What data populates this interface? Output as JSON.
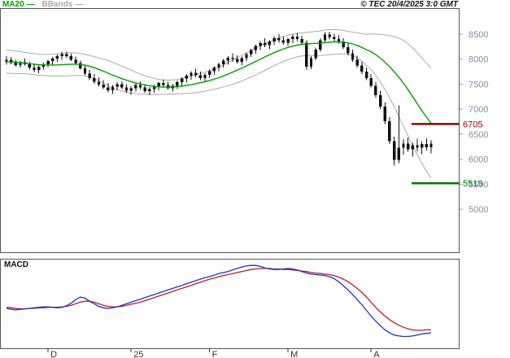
{
  "legend": {
    "ma20_label": "MA20",
    "bbands_label": "BBands",
    "swatch": "—"
  },
  "copyright": "© TEC 20/4/2025 3:0 GMT",
  "macd_label": "MACD",
  "colors": {
    "background": "#ffffff",
    "candle": "#111111",
    "panel_border": "#555555",
    "axis_label": "#7f8fa4",
    "x_label": "#333333",
    "ma20": "#00a000",
    "bollinger": "#aaaaaa",
    "macd_line": "#2233bb",
    "signal_line": "#b02030",
    "resistance": "#990000",
    "support": "#007c00"
  },
  "chart_data": {
    "type": "candlestick",
    "title": "",
    "y_axis": {
      "ticks": [
        8500,
        8000,
        7500,
        7000,
        6500,
        6000,
        5500,
        5000
      ],
      "range": [
        4140,
        9020
      ]
    },
    "x_axis": {
      "labels": [
        {
          "label": "D",
          "index": 9
        },
        {
          "label": "25",
          "index": 27
        },
        {
          "label": "F",
          "index": 44
        },
        {
          "label": "M",
          "index": 61
        },
        {
          "label": "A",
          "index": 79
        }
      ]
    },
    "candles": [
      [
        7950,
        8060,
        7890,
        7990
      ],
      [
        7990,
        8040,
        7900,
        7930
      ],
      [
        7930,
        7990,
        7850,
        7880
      ],
      [
        7880,
        7960,
        7830,
        7940
      ],
      [
        7940,
        8010,
        7870,
        7900
      ],
      [
        7900,
        7950,
        7790,
        7830
      ],
      [
        7830,
        7900,
        7740,
        7780
      ],
      [
        7780,
        7870,
        7720,
        7850
      ],
      [
        7850,
        7930,
        7790,
        7900
      ],
      [
        7900,
        7990,
        7840,
        7960
      ],
      [
        7960,
        8040,
        7890,
        8010
      ],
      [
        8010,
        8090,
        7950,
        8060
      ],
      [
        8060,
        8140,
        7990,
        8100
      ],
      [
        8100,
        8150,
        8020,
        8060
      ],
      [
        8060,
        8110,
        7960,
        7990
      ],
      [
        7990,
        8050,
        7890,
        7920
      ],
      [
        7920,
        7970,
        7790,
        7820
      ],
      [
        7820,
        7870,
        7680,
        7710
      ],
      [
        7710,
        7780,
        7580,
        7620
      ],
      [
        7620,
        7700,
        7510,
        7550
      ],
      [
        7550,
        7640,
        7450,
        7490
      ],
      [
        7490,
        7580,
        7400,
        7430
      ],
      [
        7430,
        7520,
        7340,
        7380
      ],
      [
        7380,
        7480,
        7300,
        7450
      ],
      [
        7450,
        7540,
        7380,
        7500
      ],
      [
        7500,
        7560,
        7400,
        7430
      ],
      [
        7430,
        7500,
        7330,
        7370
      ],
      [
        7370,
        7460,
        7290,
        7420
      ],
      [
        7420,
        7520,
        7350,
        7480
      ],
      [
        7480,
        7560,
        7390,
        7430
      ],
      [
        7430,
        7500,
        7330,
        7360
      ],
      [
        7360,
        7440,
        7280,
        7400
      ],
      [
        7400,
        7490,
        7330,
        7460
      ],
      [
        7460,
        7550,
        7380,
        7520
      ],
      [
        7520,
        7600,
        7440,
        7480
      ],
      [
        7480,
        7550,
        7390,
        7420
      ],
      [
        7420,
        7510,
        7350,
        7470
      ],
      [
        7470,
        7570,
        7400,
        7540
      ],
      [
        7540,
        7640,
        7470,
        7610
      ],
      [
        7610,
        7700,
        7530,
        7670
      ],
      [
        7670,
        7760,
        7590,
        7730
      ],
      [
        7730,
        7810,
        7640,
        7680
      ],
      [
        7680,
        7750,
        7580,
        7620
      ],
      [
        7620,
        7720,
        7550,
        7690
      ],
      [
        7690,
        7790,
        7620,
        7760
      ],
      [
        7760,
        7860,
        7690,
        7830
      ],
      [
        7830,
        7930,
        7760,
        7900
      ],
      [
        7900,
        8000,
        7830,
        7970
      ],
      [
        7970,
        8060,
        7890,
        8030
      ],
      [
        8030,
        8120,
        7950,
        8000
      ],
      [
        8000,
        8080,
        7910,
        7950
      ],
      [
        7950,
        8050,
        7880,
        8020
      ],
      [
        8020,
        8130,
        7960,
        8100
      ],
      [
        8100,
        8210,
        8040,
        8180
      ],
      [
        8180,
        8290,
        8110,
        8260
      ],
      [
        8260,
        8360,
        8180,
        8320
      ],
      [
        8320,
        8420,
        8240,
        8280
      ],
      [
        8280,
        8380,
        8200,
        8350
      ],
      [
        8350,
        8460,
        8280,
        8420
      ],
      [
        8420,
        8500,
        8330,
        8380
      ],
      [
        8380,
        8450,
        8290,
        8330
      ],
      [
        8330,
        8430,
        8260,
        8400
      ],
      [
        8400,
        8490,
        8320,
        8450
      ],
      [
        8450,
        8520,
        8360,
        8400
      ],
      [
        8400,
        8470,
        8290,
        8330
      ],
      [
        8330,
        8380,
        7780,
        7850
      ],
      [
        7850,
        8060,
        7800,
        8020
      ],
      [
        8020,
        8230,
        7980,
        8190
      ],
      [
        8190,
        8420,
        8150,
        8380
      ],
      [
        8380,
        8540,
        8320,
        8490
      ],
      [
        8490,
        8550,
        8390,
        8440
      ],
      [
        8440,
        8510,
        8350,
        8400
      ],
      [
        8400,
        8480,
        8310,
        8350
      ],
      [
        8350,
        8420,
        8200,
        8240
      ],
      [
        8240,
        8310,
        8080,
        8120
      ],
      [
        8120,
        8190,
        7950,
        7990
      ],
      [
        7990,
        8070,
        7830,
        7870
      ],
      [
        7870,
        7950,
        7700,
        7750
      ],
      [
        7750,
        7830,
        7580,
        7620
      ],
      [
        7620,
        7700,
        7430,
        7470
      ],
      [
        7470,
        7550,
        7230,
        7280
      ],
      [
        7280,
        7360,
        7000,
        7050
      ],
      [
        7050,
        7130,
        6700,
        6760
      ],
      [
        6760,
        6840,
        6300,
        6360
      ],
      [
        6360,
        6450,
        5870,
        5990
      ],
      [
        5990,
        7080,
        5920,
        6230
      ],
      [
        6230,
        6400,
        6090,
        6310
      ],
      [
        6310,
        6430,
        6150,
        6200
      ],
      [
        6200,
        6330,
        6050,
        6280
      ],
      [
        6280,
        6410,
        6160,
        6230
      ],
      [
        6230,
        6360,
        6100,
        6300
      ],
      [
        6300,
        6420,
        6170,
        6240
      ],
      [
        6240,
        6380,
        6120,
        6310
      ]
    ],
    "overlays": {
      "ma20": {
        "color": "#00a000",
        "values": [
          7950,
          7945,
          7940,
          7930,
          7920,
          7910,
          7900,
          7890,
          7885,
          7880,
          7880,
          7885,
          7890,
          7895,
          7900,
          7900,
          7895,
          7880,
          7860,
          7830,
          7795,
          7760,
          7720,
          7680,
          7645,
          7610,
          7580,
          7550,
          7525,
          7505,
          7485,
          7470,
          7455,
          7445,
          7440,
          7440,
          7445,
          7450,
          7460,
          7475,
          7490,
          7510,
          7530,
          7550,
          7575,
          7600,
          7630,
          7665,
          7700,
          7740,
          7780,
          7820,
          7865,
          7910,
          7955,
          8000,
          8045,
          8090,
          8130,
          8170,
          8205,
          8235,
          8260,
          8280,
          8295,
          8305,
          8310,
          8315,
          8320,
          8330,
          8340,
          8345,
          8345,
          8340,
          8325,
          8305,
          8275,
          8235,
          8185,
          8150,
          8090,
          8020,
          7940,
          7850,
          7750,
          7640,
          7520,
          7390,
          7250,
          7110,
          6970,
          6840,
          6720
        ]
      },
      "bollinger": {
        "color": "#aaaaaa",
        "basis": "ma20",
        "half_width": [
          230,
          230,
          225,
          220,
          215,
          210,
          210,
          210,
          210,
          215,
          215,
          220,
          225,
          230,
          230,
          225,
          220,
          215,
          215,
          220,
          230,
          240,
          250,
          255,
          255,
          250,
          240,
          230,
          215,
          200,
          185,
          170,
          160,
          150,
          145,
          140,
          140,
          145,
          150,
          160,
          170,
          180,
          185,
          190,
          195,
          200,
          210,
          220,
          230,
          240,
          250,
          255,
          260,
          265,
          270,
          270,
          270,
          265,
          260,
          255,
          250,
          245,
          240,
          235,
          230,
          230,
          235,
          240,
          245,
          250,
          250,
          245,
          240,
          235,
          230,
          235,
          250,
          275,
          310,
          355,
          410,
          475,
          545,
          620,
          700,
          780,
          855,
          920,
          975,
          1020,
          1055,
          1080,
          1095
        ]
      }
    },
    "levels": [
      {
        "value": 6705,
        "label": "6705",
        "color": "#990000",
        "name": "resistance"
      },
      {
        "value": 5519,
        "label": "5519",
        "color": "#007c00",
        "name": "support"
      }
    ],
    "macd": {
      "range": [
        -90,
        85
      ],
      "macd_line": {
        "color": "#2233bb",
        "values": [
          -12,
          -14,
          -15,
          -14,
          -13,
          -12,
          -11,
          -10,
          -9,
          -9,
          -10,
          -11,
          -10,
          -7,
          -2,
          5,
          10,
          8,
          2,
          -3,
          -8,
          -11,
          -12,
          -11,
          -9,
          -6,
          -3,
          0,
          3,
          6,
          9,
          12,
          15,
          18,
          21,
          24,
          27,
          30,
          33,
          36,
          39,
          42,
          45,
          48,
          50,
          53,
          56,
          58,
          60,
          63,
          66,
          69,
          71,
          72,
          72,
          70,
          67,
          65,
          64,
          64,
          65,
          66,
          65,
          63,
          60,
          57,
          55,
          54,
          53,
          52,
          50,
          46,
          40,
          32,
          24,
          15,
          5,
          -5,
          -16,
          -27,
          -37,
          -46,
          -54,
          -60,
          -64,
          -66,
          -67,
          -67,
          -66,
          -64,
          -62,
          -61,
          -60
        ]
      },
      "signal_line": {
        "color": "#b02030",
        "values": [
          -10,
          -11,
          -12,
          -13,
          -13,
          -12,
          -12,
          -11,
          -11,
          -10,
          -10,
          -10,
          -9,
          -8,
          -6,
          -3,
          0,
          2,
          2,
          0,
          -3,
          -6,
          -8,
          -9,
          -9,
          -8,
          -6,
          -4,
          -2,
          0,
          3,
          6,
          9,
          12,
          15,
          18,
          21,
          24,
          27,
          30,
          33,
          36,
          39,
          42,
          45,
          47,
          50,
          52,
          54,
          56,
          58,
          60,
          62,
          64,
          65,
          66,
          66,
          66,
          65,
          65,
          64,
          64,
          63,
          62,
          61,
          60,
          58,
          57,
          56,
          55,
          54,
          52,
          49,
          45,
          40,
          34,
          27,
          19,
          10,
          0,
          -10,
          -19,
          -27,
          -34,
          -40,
          -45,
          -49,
          -52,
          -54,
          -55,
          -55,
          -54,
          -54
        ]
      }
    }
  }
}
